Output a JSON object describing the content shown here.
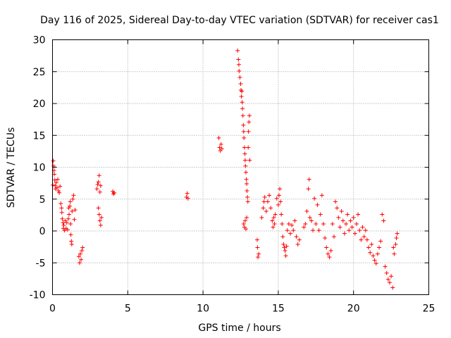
{
  "chart_data": {
    "type": "scatter",
    "title": "Day 116 of 2025, Sidereal Day-to-day VTEC variation (SDTVAR) for receiver cas1",
    "xlabel": "GPS time / hours",
    "ylabel": "SDTVAR / TECUs",
    "xlim": [
      0,
      25
    ],
    "ylim": [
      -10,
      30
    ],
    "xticks": [
      0,
      5,
      10,
      15,
      20,
      25
    ],
    "yticks": [
      -10,
      -5,
      0,
      5,
      10,
      15,
      20,
      25,
      30
    ],
    "grid": true,
    "marker": "+",
    "color": "#ff0000",
    "series": [
      {
        "name": "SDTVAR",
        "points": [
          [
            0.02,
            7.2
          ],
          [
            0.05,
            11.0
          ],
          [
            0.08,
            10.2
          ],
          [
            0.1,
            9.5
          ],
          [
            0.12,
            8.9
          ],
          [
            0.15,
            8.0
          ],
          [
            0.18,
            7.1
          ],
          [
            0.2,
            6.6
          ],
          [
            0.25,
            7.6
          ],
          [
            0.3,
            6.8
          ],
          [
            0.35,
            8.1
          ],
          [
            0.4,
            6.3
          ],
          [
            0.45,
            6.0
          ],
          [
            0.5,
            7.0
          ],
          [
            0.55,
            4.3
          ],
          [
            0.6,
            3.6
          ],
          [
            0.62,
            2.9
          ],
          [
            0.65,
            1.9
          ],
          [
            0.7,
            1.3
          ],
          [
            0.72,
            0.4
          ],
          [
            0.75,
            0.9
          ],
          [
            0.8,
            0.1
          ],
          [
            0.85,
            1.6
          ],
          [
            0.9,
            0.4
          ],
          [
            0.95,
            1.3
          ],
          [
            1.0,
            0.2
          ],
          [
            1.05,
            1.9
          ],
          [
            1.08,
            3.6
          ],
          [
            1.1,
            2.6
          ],
          [
            1.15,
            3.9
          ],
          [
            1.18,
            4.6
          ],
          [
            1.2,
            1.1
          ],
          [
            1.22,
            -0.6
          ],
          [
            1.25,
            -1.6
          ],
          [
            1.28,
            -2.1
          ],
          [
            1.3,
            3.1
          ],
          [
            1.35,
            5.0
          ],
          [
            1.4,
            5.6
          ],
          [
            1.45,
            1.8
          ],
          [
            1.5,
            3.3
          ],
          [
            1.75,
            -4.0
          ],
          [
            1.8,
            -5.0
          ],
          [
            1.85,
            -3.6
          ],
          [
            1.9,
            -4.5
          ],
          [
            1.95,
            -3.1
          ],
          [
            2.0,
            -2.6
          ],
          [
            2.95,
            6.6
          ],
          [
            3.0,
            7.3
          ],
          [
            3.05,
            7.7
          ],
          [
            3.1,
            8.7
          ],
          [
            3.15,
            6.1
          ],
          [
            3.2,
            7.1
          ],
          [
            3.05,
            3.6
          ],
          [
            3.1,
            2.6
          ],
          [
            3.15,
            1.6
          ],
          [
            3.2,
            0.9
          ],
          [
            3.25,
            2.1
          ],
          [
            4.0,
            6.2
          ],
          [
            4.05,
            5.8
          ],
          [
            4.1,
            6.0
          ],
          [
            8.9,
            5.3
          ],
          [
            8.95,
            5.9
          ],
          [
            9.0,
            5.1
          ],
          [
            11.05,
            14.6
          ],
          [
            11.1,
            13.1
          ],
          [
            11.15,
            12.6
          ],
          [
            11.2,
            13.6
          ],
          [
            11.25,
            12.9
          ],
          [
            12.3,
            28.3
          ],
          [
            12.35,
            26.9
          ],
          [
            12.38,
            26.1
          ],
          [
            12.4,
            25.1
          ],
          [
            12.45,
            24.1
          ],
          [
            12.5,
            23.1
          ],
          [
            12.52,
            22.1
          ],
          [
            12.55,
            21.1
          ],
          [
            12.58,
            21.9
          ],
          [
            12.6,
            20.2
          ],
          [
            12.62,
            19.2
          ],
          [
            12.65,
            18.1
          ],
          [
            12.68,
            16.6
          ],
          [
            12.7,
            15.6
          ],
          [
            12.72,
            14.6
          ],
          [
            12.75,
            13.1
          ],
          [
            12.78,
            12.1
          ],
          [
            12.8,
            11.1
          ],
          [
            12.82,
            10.2
          ],
          [
            12.85,
            9.2
          ],
          [
            12.88,
            8.1
          ],
          [
            12.9,
            7.4
          ],
          [
            12.92,
            6.3
          ],
          [
            12.95,
            5.3
          ],
          [
            12.98,
            4.6
          ],
          [
            13.0,
            13.1
          ],
          [
            13.02,
            15.6
          ],
          [
            13.05,
            17.1
          ],
          [
            13.08,
            18.1
          ],
          [
            13.1,
            11.1
          ],
          [
            12.7,
            1.1
          ],
          [
            12.75,
            0.6
          ],
          [
            12.8,
            1.6
          ],
          [
            12.85,
            0.3
          ],
          [
            12.9,
            2.1
          ],
          [
            13.6,
            -1.4
          ],
          [
            13.62,
            -2.6
          ],
          [
            13.65,
            -4.1
          ],
          [
            13.7,
            -3.6
          ],
          [
            13.9,
            2.1
          ],
          [
            14.0,
            3.6
          ],
          [
            14.05,
            4.6
          ],
          [
            14.1,
            5.3
          ],
          [
            14.2,
            3.1
          ],
          [
            14.3,
            4.6
          ],
          [
            14.4,
            5.6
          ],
          [
            14.5,
            3.6
          ],
          [
            14.6,
            1.6
          ],
          [
            14.65,
            0.6
          ],
          [
            14.7,
            2.1
          ],
          [
            14.75,
            1.1
          ],
          [
            14.8,
            2.6
          ],
          [
            14.9,
            5.1
          ],
          [
            15.0,
            4.1
          ],
          [
            15.05,
            5.6
          ],
          [
            15.1,
            6.6
          ],
          [
            15.15,
            4.6
          ],
          [
            15.2,
            2.6
          ],
          [
            15.25,
            1.1
          ],
          [
            15.3,
            -0.9
          ],
          [
            15.35,
            -2.1
          ],
          [
            15.4,
            -2.6
          ],
          [
            15.45,
            -3.1
          ],
          [
            15.5,
            -3.9
          ],
          [
            15.55,
            -2.4
          ],
          [
            15.6,
            0.1
          ],
          [
            15.7,
            1.1
          ],
          [
            15.8,
            -0.4
          ],
          [
            15.9,
            0.9
          ],
          [
            16.0,
            0.1
          ],
          [
            16.1,
            1.6
          ],
          [
            16.2,
            -0.9
          ],
          [
            16.3,
            -2.1
          ],
          [
            16.4,
            -1.4
          ],
          [
            16.7,
            0.6
          ],
          [
            16.8,
            1.1
          ],
          [
            16.9,
            3.1
          ],
          [
            17.0,
            6.6
          ],
          [
            17.05,
            8.1
          ],
          [
            17.1,
            2.1
          ],
          [
            17.2,
            1.6
          ],
          [
            17.3,
            0.1
          ],
          [
            17.4,
            5.1
          ],
          [
            17.5,
            1.1
          ],
          [
            17.6,
            4.1
          ],
          [
            17.7,
            0.1
          ],
          [
            17.8,
            2.6
          ],
          [
            17.9,
            5.6
          ],
          [
            18.0,
            1.1
          ],
          [
            18.1,
            -1.1
          ],
          [
            18.2,
            -2.6
          ],
          [
            18.3,
            -3.6
          ],
          [
            18.4,
            -4.1
          ],
          [
            18.5,
            -3.1
          ],
          [
            18.6,
            1.1
          ],
          [
            18.7,
            -0.9
          ],
          [
            18.8,
            4.6
          ],
          [
            18.9,
            3.6
          ],
          [
            19.0,
            2.1
          ],
          [
            19.1,
            0.6
          ],
          [
            19.2,
            3.1
          ],
          [
            19.3,
            1.6
          ],
          [
            19.4,
            -0.4
          ],
          [
            19.5,
            1.1
          ],
          [
            19.6,
            2.6
          ],
          [
            19.7,
            0.1
          ],
          [
            19.8,
            1.6
          ],
          [
            19.9,
            0.6
          ],
          [
            20.0,
            2.1
          ],
          [
            20.1,
            -0.4
          ],
          [
            20.2,
            1.1
          ],
          [
            20.3,
            2.6
          ],
          [
            20.4,
            0.1
          ],
          [
            20.5,
            -1.4
          ],
          [
            20.6,
            0.6
          ],
          [
            20.7,
            -0.9
          ],
          [
            20.8,
            0.1
          ],
          [
            20.9,
            -1.4
          ],
          [
            21.0,
            -2.6
          ],
          [
            21.1,
            -3.4
          ],
          [
            21.2,
            -2.1
          ],
          [
            21.3,
            -3.9
          ],
          [
            21.4,
            -4.6
          ],
          [
            21.5,
            -5.1
          ],
          [
            21.6,
            -3.6
          ],
          [
            21.7,
            -2.6
          ],
          [
            21.8,
            -1.6
          ],
          [
            21.9,
            2.6
          ],
          [
            22.0,
            1.6
          ],
          [
            22.1,
            -5.6
          ],
          [
            22.2,
            -6.6
          ],
          [
            22.3,
            -7.6
          ],
          [
            22.4,
            -8.1
          ],
          [
            22.5,
            -7.1
          ],
          [
            22.6,
            -8.9
          ],
          [
            22.65,
            -2.6
          ],
          [
            22.7,
            -3.6
          ],
          [
            22.8,
            -2.1
          ],
          [
            22.85,
            -1.1
          ],
          [
            22.9,
            -0.4
          ]
        ]
      }
    ]
  }
}
